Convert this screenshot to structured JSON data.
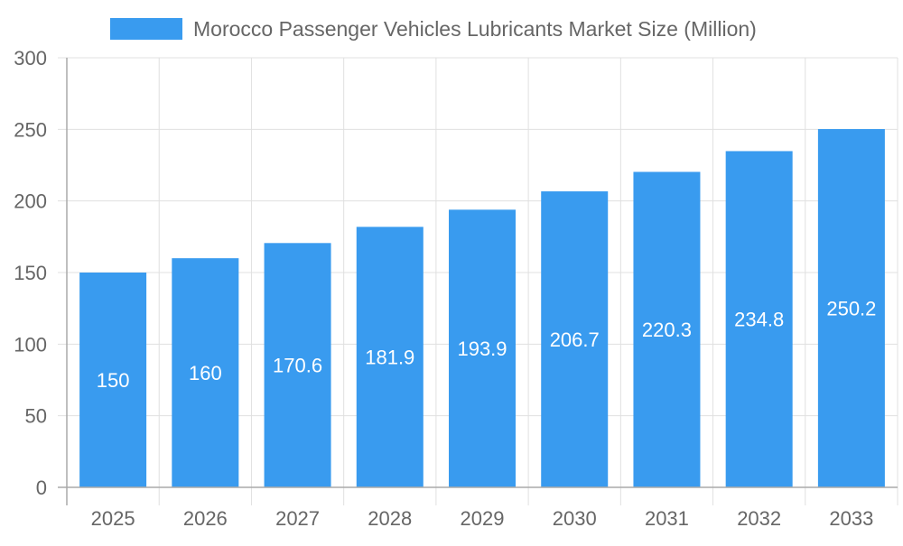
{
  "chart_data": {
    "type": "bar",
    "title": "",
    "legend": {
      "position": "top",
      "entries": [
        "Morocco Passenger Vehicles Lubricants Market Size (Million)"
      ]
    },
    "categories": [
      "2025",
      "2026",
      "2027",
      "2028",
      "2029",
      "2030",
      "2031",
      "2032",
      "2033"
    ],
    "series": [
      {
        "name": "Morocco Passenger Vehicles Lubricants Market Size (Million)",
        "values": [
          150,
          160,
          170.6,
          181.9,
          193.9,
          206.7,
          220.3,
          234.8,
          250.2
        ],
        "color": "#399bef"
      }
    ],
    "data_labels": [
      "150",
      "160",
      "170.6",
      "181.9",
      "193.9",
      "206.7",
      "220.3",
      "234.8",
      "250.2"
    ],
    "xlabel": "",
    "ylabel": "",
    "ylim": [
      0,
      300
    ],
    "yticks": [
      "0",
      "50",
      "100",
      "150",
      "200",
      "250",
      "300"
    ],
    "grid": true
  }
}
